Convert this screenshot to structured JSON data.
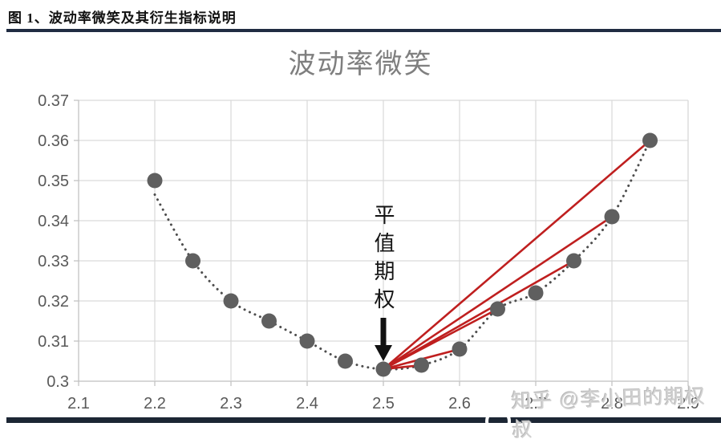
{
  "header": {
    "title": "图 1、波动率微笑及其衍生指标说明"
  },
  "watermark": {
    "text": "知乎 @李小田的期权叔"
  },
  "chart_data": {
    "type": "scatter",
    "title": "波动率微笑",
    "xlabel": "",
    "ylabel": "",
    "xlim": [
      2.1,
      2.9
    ],
    "ylim": [
      0.3,
      0.37
    ],
    "grid": true,
    "x_ticks": [
      "2.1",
      "2.2",
      "2.3",
      "2.4",
      "2.5",
      "2.6",
      "2.7",
      "2.8",
      "2.9"
    ],
    "y_ticks": [
      "0.3",
      "0.31",
      "0.32",
      "0.33",
      "0.34",
      "0.35",
      "0.36",
      "0.37"
    ],
    "points": [
      [
        2.2,
        0.35
      ],
      [
        2.25,
        0.33
      ],
      [
        2.3,
        0.32
      ],
      [
        2.35,
        0.315
      ],
      [
        2.4,
        0.31
      ],
      [
        2.45,
        0.305
      ],
      [
        2.5,
        0.303
      ],
      [
        2.55,
        0.304
      ],
      [
        2.6,
        0.308
      ],
      [
        2.65,
        0.318
      ],
      [
        2.7,
        0.322
      ],
      [
        2.75,
        0.33
      ],
      [
        2.8,
        0.341
      ],
      [
        2.85,
        0.36
      ]
    ],
    "trend_start": [
      2.2,
      0.3465
    ],
    "red_lines": {
      "origin": [
        2.5,
        0.303
      ],
      "target_x": [
        2.55,
        2.6,
        2.65,
        2.75,
        2.8,
        2.85
      ]
    },
    "annotation": {
      "label": "平值期权",
      "arrow_x": 2.5
    },
    "colors": {
      "marker": "#5f5f5f",
      "trend": "#4d4d4d",
      "red_line": "#bf1f1f",
      "grid": "#d9d9d9",
      "axis": "#bfbfbf",
      "tick_text": "#595959",
      "title": "#7f7f7f",
      "arrow": "#111111"
    }
  }
}
